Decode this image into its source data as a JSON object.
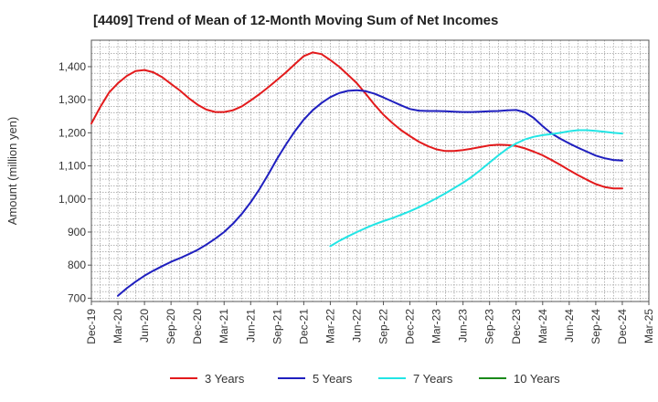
{
  "chart_data": {
    "type": "line",
    "title": "[4409]  Trend of Mean of 12-Month Moving Sum of Net Incomes",
    "xlabel": "",
    "ylabel": "Amount (million yen)",
    "ylim": [
      690,
      1480
    ],
    "yticks": [
      700,
      800,
      900,
      1000,
      1100,
      1200,
      1300,
      1400
    ],
    "ytick_labels": [
      "700",
      "800",
      "900",
      "1,000",
      "1,100",
      "1,200",
      "1,300",
      "1,400"
    ],
    "x_range": [
      "2019-12",
      "2025-03"
    ],
    "xtick_labels": [
      "Dec-19",
      "Mar-20",
      "Jun-20",
      "Sep-20",
      "Dec-20",
      "Mar-21",
      "Jun-21",
      "Sep-21",
      "Dec-21",
      "Mar-22",
      "Jun-22",
      "Sep-22",
      "Dec-22",
      "Mar-23",
      "Jun-23",
      "Sep-23",
      "Dec-23",
      "Mar-24",
      "Jun-24",
      "Sep-24",
      "Dec-24",
      "Mar-25"
    ],
    "grid": true,
    "legend_position": "bottom",
    "series": [
      {
        "name": "3 Years",
        "color": "#e31a1c",
        "x": [
          "2019-12",
          "2020-01",
          "2020-02",
          "2020-03",
          "2020-04",
          "2020-05",
          "2020-06",
          "2020-07",
          "2020-08",
          "2020-09",
          "2020-10",
          "2020-11",
          "2020-12",
          "2021-01",
          "2021-02",
          "2021-03",
          "2021-04",
          "2021-05",
          "2021-06",
          "2021-07",
          "2021-08",
          "2021-09",
          "2021-10",
          "2021-11",
          "2021-12",
          "2022-01",
          "2022-02",
          "2022-03",
          "2022-04",
          "2022-05",
          "2022-06",
          "2022-07",
          "2022-08",
          "2022-09",
          "2022-10",
          "2022-11",
          "2022-12",
          "2023-01",
          "2023-02",
          "2023-03",
          "2023-04",
          "2023-05",
          "2023-06",
          "2023-07",
          "2023-08",
          "2023-09",
          "2023-10",
          "2023-11",
          "2023-12",
          "2024-01",
          "2024-02",
          "2024-03",
          "2024-04",
          "2024-05",
          "2024-06",
          "2024-07",
          "2024-08",
          "2024-09",
          "2024-10",
          "2024-11",
          "2024-12"
        ],
        "values": [
          1228,
          1278,
          1322,
          1350,
          1372,
          1387,
          1390,
          1383,
          1368,
          1348,
          1328,
          1305,
          1285,
          1270,
          1263,
          1263,
          1268,
          1280,
          1298,
          1317,
          1338,
          1360,
          1383,
          1408,
          1432,
          1443,
          1438,
          1420,
          1400,
          1375,
          1350,
          1318,
          1285,
          1255,
          1230,
          1208,
          1190,
          1173,
          1160,
          1150,
          1145,
          1145,
          1148,
          1152,
          1157,
          1162,
          1164,
          1163,
          1160,
          1153,
          1143,
          1132,
          1118,
          1103,
          1087,
          1072,
          1058,
          1045,
          1036,
          1032,
          1032
        ]
      },
      {
        "name": "5 Years",
        "color": "#1f1fbf",
        "x": [
          "2020-03",
          "2020-04",
          "2020-05",
          "2020-06",
          "2020-07",
          "2020-08",
          "2020-09",
          "2020-10",
          "2020-11",
          "2020-12",
          "2021-01",
          "2021-02",
          "2021-03",
          "2021-04",
          "2021-05",
          "2021-06",
          "2021-07",
          "2021-08",
          "2021-09",
          "2021-10",
          "2021-11",
          "2021-12",
          "2022-01",
          "2022-02",
          "2022-03",
          "2022-04",
          "2022-05",
          "2022-06",
          "2022-07",
          "2022-08",
          "2022-09",
          "2022-10",
          "2022-11",
          "2022-12",
          "2023-01",
          "2023-02",
          "2023-03",
          "2023-04",
          "2023-05",
          "2023-06",
          "2023-07",
          "2023-08",
          "2023-09",
          "2023-10",
          "2023-11",
          "2023-12",
          "2024-01",
          "2024-02",
          "2024-03",
          "2024-04",
          "2024-05",
          "2024-06",
          "2024-07",
          "2024-08",
          "2024-09",
          "2024-10",
          "2024-11",
          "2024-12"
        ],
        "values": [
          707,
          730,
          750,
          768,
          783,
          797,
          810,
          821,
          833,
          846,
          862,
          880,
          900,
          925,
          955,
          990,
          1030,
          1075,
          1122,
          1165,
          1205,
          1240,
          1268,
          1290,
          1308,
          1320,
          1327,
          1329,
          1326,
          1318,
          1307,
          1295,
          1283,
          1272,
          1267,
          1266,
          1266,
          1265,
          1264,
          1263,
          1263,
          1264,
          1265,
          1266,
          1268,
          1269,
          1262,
          1245,
          1220,
          1198,
          1182,
          1168,
          1155,
          1143,
          1131,
          1123,
          1118,
          1116
        ]
      },
      {
        "name": "7 Years",
        "color": "#22e5e5",
        "x": [
          "2022-03",
          "2022-04",
          "2022-05",
          "2022-06",
          "2022-07",
          "2022-08",
          "2022-09",
          "2022-10",
          "2022-11",
          "2022-12",
          "2023-01",
          "2023-02",
          "2023-03",
          "2023-04",
          "2023-05",
          "2023-06",
          "2023-07",
          "2023-08",
          "2023-09",
          "2023-10",
          "2023-11",
          "2023-12",
          "2024-01",
          "2024-02",
          "2024-03",
          "2024-04",
          "2024-05",
          "2024-06",
          "2024-07",
          "2024-08",
          "2024-09",
          "2024-10",
          "2024-11",
          "2024-12"
        ],
        "values": [
          857,
          873,
          887,
          900,
          912,
          923,
          933,
          942,
          952,
          963,
          975,
          988,
          1002,
          1017,
          1033,
          1049,
          1067,
          1088,
          1110,
          1132,
          1152,
          1168,
          1180,
          1188,
          1193,
          1196,
          1200,
          1205,
          1208,
          1208,
          1206,
          1203,
          1200,
          1198
        ]
      },
      {
        "name": "10 Years",
        "color": "#1a8a1a",
        "x": [],
        "values": []
      }
    ]
  }
}
